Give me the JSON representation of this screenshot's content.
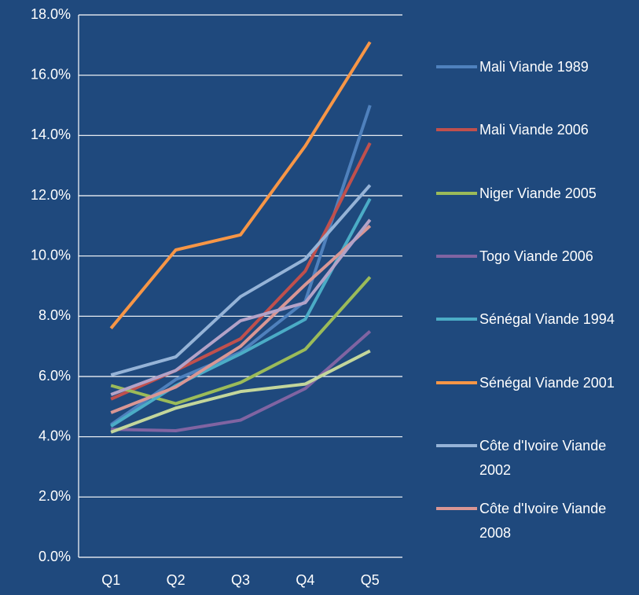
{
  "chart_data": {
    "type": "line",
    "categories": [
      "Q1",
      "Q2",
      "Q3",
      "Q4",
      "Q5"
    ],
    "ylim": [
      0,
      18
    ],
    "yticks": [
      {
        "value": 0,
        "label": "0.0%"
      },
      {
        "value": 2,
        "label": "2.0%"
      },
      {
        "value": 4,
        "label": "4.0%"
      },
      {
        "value": 6,
        "label": "6.0%"
      },
      {
        "value": 8,
        "label": "8.0%"
      },
      {
        "value": 10,
        "label": "10.0%"
      },
      {
        "value": 12,
        "label": "12.0%"
      },
      {
        "value": 14,
        "label": "14.0%"
      },
      {
        "value": 16,
        "label": "16.0%"
      },
      {
        "value": 18,
        "label": "18.0%"
      }
    ],
    "grid": true,
    "legend": "right",
    "series": [
      {
        "name": "Mali Viande 1989",
        "color": "#4f81bd",
        "values": [
          4.4,
          5.9,
          6.8,
          8.5,
          15.0
        ]
      },
      {
        "name": "Mali Viande 2006",
        "color": "#c0504d",
        "values": [
          5.25,
          6.2,
          7.25,
          9.5,
          13.75
        ]
      },
      {
        "name": "Niger Viande 2005",
        "color": "#9bbb59",
        "values": [
          5.7,
          5.1,
          5.8,
          6.9,
          9.3
        ]
      },
      {
        "name": "Togo Viande 2006",
        "color": "#8064a2",
        "values": [
          4.25,
          4.2,
          4.55,
          5.6,
          7.5
        ]
      },
      {
        "name": "Sénégal Viande 1994",
        "color": "#4bacc6",
        "values": [
          4.35,
          5.7,
          6.75,
          7.9,
          11.9
        ]
      },
      {
        "name": "Sénégal Viande 2001",
        "color": "#f79646",
        "values": [
          7.6,
          10.2,
          10.7,
          13.65,
          17.1
        ]
      },
      {
        "name": "Côte d'Ivoire Viande 2002",
        "color": "#95b3d7",
        "values": [
          6.05,
          6.65,
          8.65,
          9.9,
          12.35
        ]
      },
      {
        "name": "Côte d'Ivoire Viande 2008",
        "color": "#d99694",
        "values": [
          4.8,
          5.65,
          7.0,
          9.05,
          11.0
        ]
      },
      {
        "color": "#c3d69b",
        "values": [
          4.15,
          4.95,
          5.5,
          5.75,
          6.85
        ]
      },
      {
        "color": "#b3a2c7",
        "values": [
          5.4,
          6.2,
          7.85,
          8.45,
          11.2
        ]
      }
    ]
  }
}
